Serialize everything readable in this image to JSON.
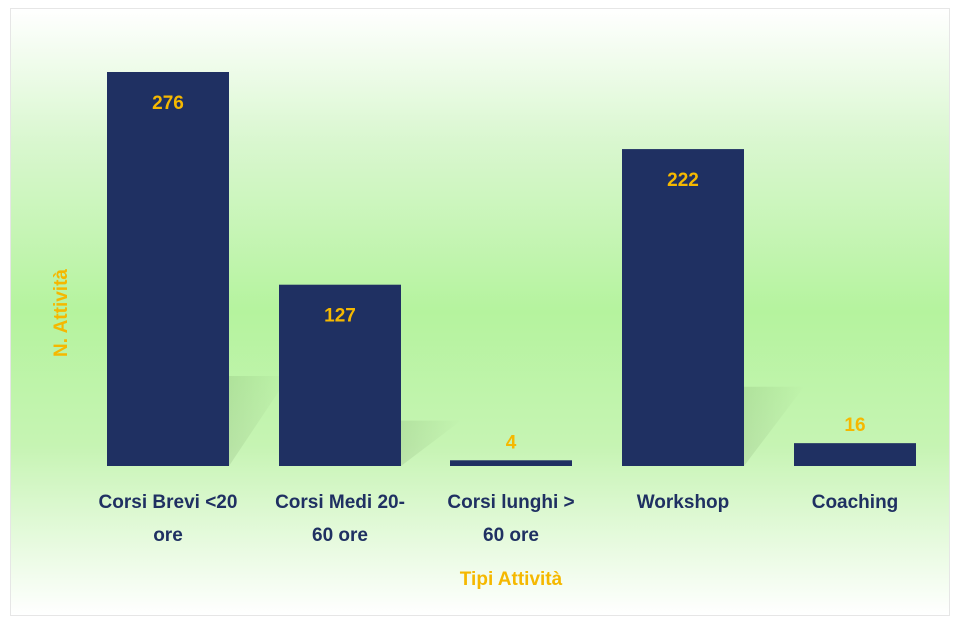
{
  "chart_data": {
    "type": "bar",
    "categories": [
      [
        "Corsi Brevi <20",
        "ore"
      ],
      [
        "Corsi Medi 20-",
        "60 ore"
      ],
      [
        "Corsi lunghi >",
        "60 ore"
      ],
      [
        "Workshop"
      ],
      [
        "Coaching"
      ]
    ],
    "values": [
      276,
      127,
      4,
      222,
      16
    ],
    "title": "",
    "xlabel": "Tipi Attività",
    "ylabel": "N. Attività",
    "ylim": [
      0,
      276
    ],
    "grid": false,
    "legend": "none",
    "colors": {
      "bar": "#1f3062",
      "data_label": "#f5b800",
      "axis_title": "#f5b800",
      "tick_label": "#1f3062"
    }
  }
}
